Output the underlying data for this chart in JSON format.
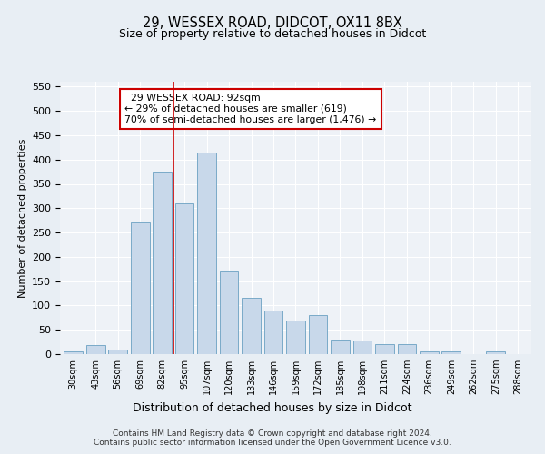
{
  "title1": "29, WESSEX ROAD, DIDCOT, OX11 8BX",
  "title2": "Size of property relative to detached houses in Didcot",
  "xlabel": "Distribution of detached houses by size in Didcot",
  "ylabel": "Number of detached properties",
  "categories": [
    "30sqm",
    "43sqm",
    "56sqm",
    "69sqm",
    "82sqm",
    "95sqm",
    "107sqm",
    "120sqm",
    "133sqm",
    "146sqm",
    "159sqm",
    "172sqm",
    "185sqm",
    "198sqm",
    "211sqm",
    "224sqm",
    "236sqm",
    "249sqm",
    "262sqm",
    "275sqm",
    "288sqm"
  ],
  "values": [
    5,
    18,
    10,
    270,
    375,
    310,
    415,
    170,
    115,
    90,
    70,
    80,
    30,
    28,
    20,
    20,
    5,
    5,
    0,
    5,
    0
  ],
  "bar_color": "#c8d8ea",
  "bar_edge_color": "#7aaac8",
  "vline_x_index": 4.5,
  "vline_color": "#cc0000",
  "annotation_text": "  29 WESSEX ROAD: 92sqm\n← 29% of detached houses are smaller (619)\n70% of semi-detached houses are larger (1,476) →",
  "annotation_box_color": "#ffffff",
  "annotation_box_edge": "#cc0000",
  "ylim": [
    0,
    560
  ],
  "yticks": [
    0,
    50,
    100,
    150,
    200,
    250,
    300,
    350,
    400,
    450,
    500,
    550
  ],
  "footer1": "Contains HM Land Registry data © Crown copyright and database right 2024.",
  "footer2": "Contains public sector information licensed under the Open Government Licence v3.0.",
  "bg_color": "#e8eef4",
  "plot_bg_color": "#eef2f7",
  "title1_fontsize": 10.5,
  "title2_fontsize": 9,
  "annotation_fontsize": 7.8
}
